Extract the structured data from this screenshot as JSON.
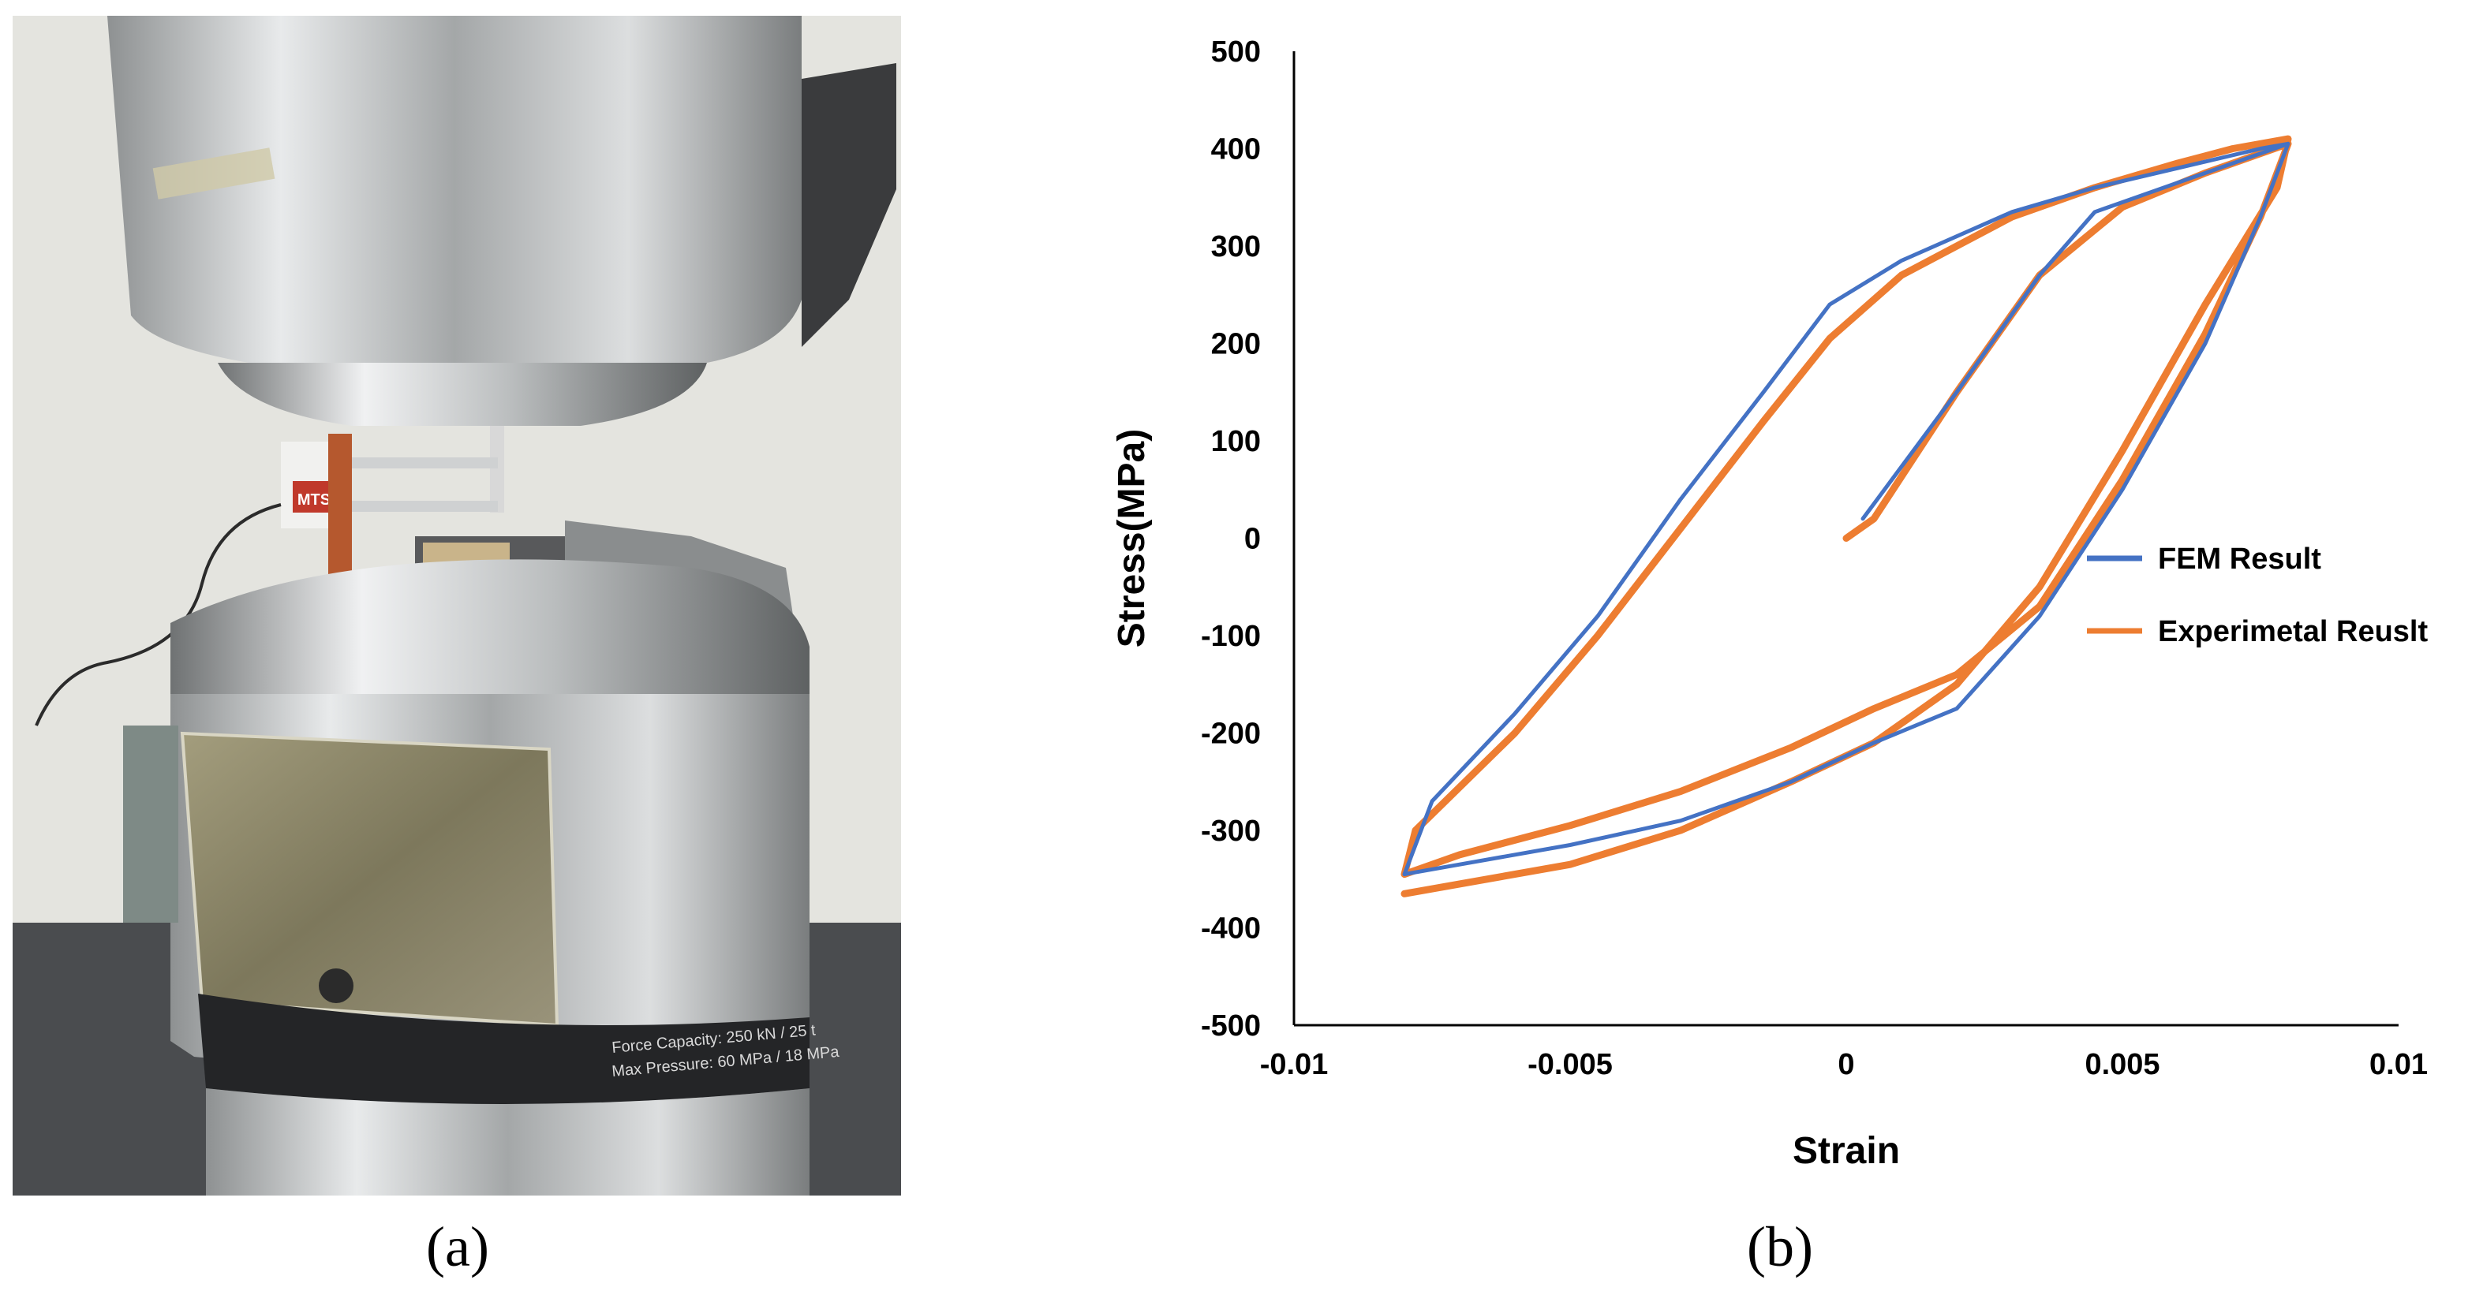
{
  "panels": {
    "a_label": "(a)",
    "b_label": "(b)"
  },
  "photo": {
    "plate_line1": "Force Capacity: 250 kN / 25 t",
    "plate_line2": "Max Pressure: 60 MPa / 18 MPa",
    "gauge_brand": "MTS",
    "colors": {
      "background": "#e6e6e2",
      "metal": "#b9bcbd",
      "dark": "#2f3032",
      "label_plate": "#8f8a6c"
    }
  },
  "chart_data": {
    "type": "line",
    "xlabel": "Strain",
    "ylabel": "Stress(MPa)",
    "xlim": [
      -0.01,
      0.01
    ],
    "ylim": [
      -500,
      500
    ],
    "x_ticks": [
      -0.01,
      -0.005,
      0,
      0.005,
      0.01
    ],
    "x_tick_labels": [
      "-0.01",
      "-0.005",
      "0",
      "0.005",
      "0.01"
    ],
    "y_ticks": [
      500,
      400,
      300,
      200,
      100,
      0,
      -100,
      -200,
      -300,
      -400,
      -500
    ],
    "y_tick_labels": [
      "500",
      "400",
      "300",
      "200",
      "100",
      "0",
      "-100",
      "-200",
      "-300",
      "-400",
      "-500"
    ],
    "grid": false,
    "legend_position": "right-center",
    "series": [
      {
        "name": "FEM Result",
        "color": "#4472c4",
        "x": [
          0.0003,
          0.002,
          0.0035,
          0.0045,
          0.006,
          0.0075,
          0.008,
          0.0075,
          0.0065,
          0.005,
          0.0035,
          0.002,
          0.0005,
          -0.001,
          -0.003,
          -0.005,
          -0.007,
          -0.008,
          -0.0075,
          -0.006,
          -0.0045,
          -0.003,
          -0.0015,
          -0.0003,
          0.001,
          0.003,
          0.0045,
          0.006,
          0.0075,
          0.008
        ],
        "y": [
          20,
          150,
          270,
          335,
          365,
          395,
          405,
          330,
          200,
          50,
          -80,
          -175,
          -210,
          -250,
          -290,
          -315,
          -335,
          -345,
          -270,
          -180,
          -80,
          40,
          150,
          240,
          285,
          335,
          360,
          380,
          400,
          405
        ]
      },
      {
        "name": "Experimetal Reuslt",
        "color": "#ed7d31",
        "x": [
          0.0,
          0.0005,
          0.002,
          0.0035,
          0.005,
          0.0065,
          0.008,
          0.0075,
          0.0065,
          0.005,
          0.0035,
          0.002,
          0.0005,
          -0.001,
          -0.003,
          -0.005,
          -0.007,
          -0.008,
          -0.0078,
          -0.006,
          -0.0045,
          -0.003,
          -0.0015,
          -0.0003,
          0.001,
          0.003,
          0.0045,
          0.006,
          0.007,
          0.008,
          0.0078,
          0.0065,
          0.005,
          0.0035,
          0.002,
          0.0005,
          -0.001,
          -0.003,
          -0.005,
          -0.007,
          -0.008
        ],
        "y": [
          0,
          20,
          150,
          270,
          340,
          375,
          405,
          330,
          210,
          60,
          -70,
          -140,
          -175,
          -215,
          -260,
          -295,
          -325,
          -345,
          -300,
          -200,
          -100,
          10,
          120,
          205,
          270,
          330,
          360,
          385,
          400,
          410,
          360,
          240,
          90,
          -50,
          -150,
          -210,
          -250,
          -300,
          -335,
          -355,
          -365
        ]
      }
    ]
  }
}
